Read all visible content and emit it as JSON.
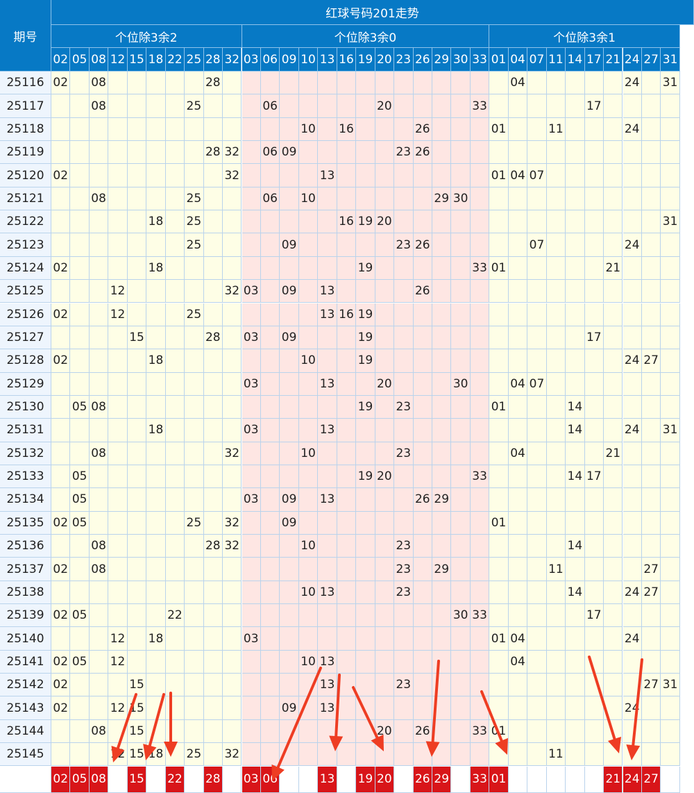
{
  "title": "红球号码201走势",
  "period_header": "期号",
  "groups": [
    {
      "label": "个位除3余2",
      "numbers": [
        "02",
        "05",
        "08",
        "12",
        "15",
        "18",
        "22",
        "25",
        "28",
        "32"
      ]
    },
    {
      "label": "个位除3余0",
      "numbers": [
        "03",
        "06",
        "09",
        "10",
        "13",
        "16",
        "19",
        "20",
        "23",
        "26",
        "29",
        "30",
        "33"
      ]
    },
    {
      "label": "个位除3余1",
      "numbers": [
        "01",
        "04",
        "07",
        "11",
        "14",
        "17",
        "21",
        "24",
        "27",
        "31"
      ]
    }
  ],
  "rows": [
    {
      "period": "25116",
      "balls": [
        "02",
        "08",
        "28",
        "04",
        "24",
        "31"
      ]
    },
    {
      "period": "25117",
      "balls": [
        "08",
        "25",
        "06",
        "20",
        "33",
        "17"
      ]
    },
    {
      "period": "25118",
      "balls": [
        "10",
        "16",
        "26",
        "01",
        "11",
        "24"
      ]
    },
    {
      "period": "25119",
      "balls": [
        "28",
        "32",
        "06",
        "09",
        "23",
        "26"
      ]
    },
    {
      "period": "25120",
      "balls": [
        "02",
        "32",
        "13",
        "01",
        "04",
        "07"
      ]
    },
    {
      "period": "25121",
      "balls": [
        "08",
        "25",
        "06",
        "10",
        "29",
        "30"
      ]
    },
    {
      "period": "25122",
      "balls": [
        "18",
        "25",
        "16",
        "19",
        "20",
        "31"
      ]
    },
    {
      "period": "25123",
      "balls": [
        "25",
        "09",
        "23",
        "26",
        "07",
        "24"
      ]
    },
    {
      "period": "25124",
      "balls": [
        "02",
        "18",
        "19",
        "33",
        "01",
        "21"
      ]
    },
    {
      "period": "25125",
      "balls": [
        "12",
        "32",
        "03",
        "09",
        "13",
        "26"
      ]
    },
    {
      "period": "25126",
      "balls": [
        "02",
        "12",
        "25",
        "13",
        "16",
        "19"
      ]
    },
    {
      "period": "25127",
      "balls": [
        "15",
        "28",
        "03",
        "09",
        "19",
        "17"
      ]
    },
    {
      "period": "25128",
      "balls": [
        "02",
        "18",
        "10",
        "19",
        "24",
        "27"
      ]
    },
    {
      "period": "25129",
      "balls": [
        "03",
        "13",
        "20",
        "30",
        "04",
        "07"
      ]
    },
    {
      "period": "25130",
      "balls": [
        "05",
        "08",
        "19",
        "23",
        "01",
        "14"
      ]
    },
    {
      "period": "25131",
      "balls": [
        "18",
        "03",
        "13",
        "14",
        "24",
        "31"
      ]
    },
    {
      "period": "25132",
      "balls": [
        "08",
        "32",
        "10",
        "23",
        "04",
        "21"
      ]
    },
    {
      "period": "25133",
      "balls": [
        "05",
        "19",
        "20",
        "33",
        "14",
        "17"
      ]
    },
    {
      "period": "25134",
      "balls": [
        "05",
        "03",
        "09",
        "13",
        "26",
        "29"
      ]
    },
    {
      "period": "25135",
      "balls": [
        "02",
        "05",
        "25",
        "32",
        "09",
        "01"
      ]
    },
    {
      "period": "25136",
      "balls": [
        "08",
        "28",
        "32",
        "10",
        "23",
        "14"
      ]
    },
    {
      "period": "25137",
      "balls": [
        "02",
        "08",
        "23",
        "29",
        "11",
        "27"
      ]
    },
    {
      "period": "25138",
      "balls": [
        "10",
        "13",
        "23",
        "14",
        "24",
        "27"
      ]
    },
    {
      "period": "25139",
      "balls": [
        "02",
        "05",
        "22",
        "30",
        "33",
        "17"
      ]
    },
    {
      "period": "25140",
      "balls": [
        "12",
        "18",
        "03",
        "01",
        "04",
        "24"
      ]
    },
    {
      "period": "25141",
      "balls": [
        "02",
        "05",
        "12",
        "10",
        "13",
        "04"
      ]
    },
    {
      "period": "25142",
      "balls": [
        "02",
        "15",
        "13",
        "23",
        "27",
        "31"
      ]
    },
    {
      "period": "25143",
      "balls": [
        "02",
        "12",
        "15",
        "09",
        "13",
        "24"
      ]
    },
    {
      "period": "25144",
      "balls": [
        "08",
        "15",
        "20",
        "26",
        "33",
        "01"
      ]
    },
    {
      "period": "25145",
      "balls": [
        "12",
        "15",
        "18",
        "25",
        "32",
        "11"
      ]
    }
  ],
  "selected": [
    "02",
    "05",
    "08",
    "15",
    "22",
    "28",
    "03",
    "06",
    "13",
    "19",
    "20",
    "26",
    "29",
    "33",
    "01",
    "21",
    "24",
    "27"
  ],
  "annotation_color": "#ee3d23",
  "header_color": "#0779c5",
  "hit_color": "#d81519"
}
